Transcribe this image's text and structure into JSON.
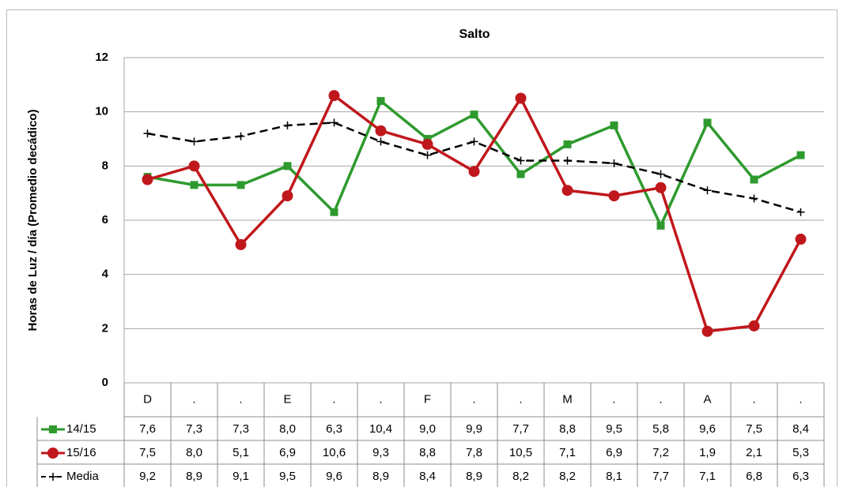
{
  "chart_data": {
    "type": "line",
    "title": "Salto",
    "y_label": "Horas de Luz / día (Promedio decádico)",
    "categories": [
      "D",
      ".",
      ".",
      "E",
      ".",
      ".",
      "F",
      ".",
      ".",
      "M",
      ".",
      ".",
      "A",
      ".",
      "."
    ],
    "series": [
      {
        "name": "14/15",
        "color": "#2e9a2e",
        "marker": "square",
        "values": [
          7.6,
          7.3,
          7.3,
          8.0,
          6.3,
          10.4,
          9.0,
          9.9,
          7.7,
          8.8,
          9.5,
          5.8,
          9.6,
          7.5,
          8.4
        ],
        "value_labels": [
          "7,6",
          "7,3",
          "7,3",
          "8,0",
          "6,3",
          "10,4",
          "9,0",
          "9,9",
          "7,7",
          "8,8",
          "9,5",
          "5,8",
          "9,6",
          "7,5",
          "8,4"
        ]
      },
      {
        "name": "15/16",
        "color": "#c0171c",
        "marker": "circle",
        "values": [
          7.5,
          8.0,
          5.1,
          6.9,
          10.6,
          9.3,
          8.8,
          7.8,
          10.5,
          7.1,
          6.9,
          7.2,
          1.9,
          2.1,
          5.3
        ],
        "value_labels": [
          "7,5",
          "8,0",
          "5,1",
          "6,9",
          "10,6",
          "9,3",
          "8,8",
          "7,8",
          "10,5",
          "7,1",
          "6,9",
          "7,2",
          "1,9",
          "2,1",
          "5,3"
        ]
      },
      {
        "name": "Media",
        "color": "#000000",
        "marker": "plus",
        "dashed": true,
        "values": [
          9.2,
          8.9,
          9.1,
          9.5,
          9.6,
          8.9,
          8.4,
          8.9,
          8.2,
          8.2,
          8.1,
          7.7,
          7.1,
          6.8,
          6.3
        ],
        "value_labels": [
          "9,2",
          "8,9",
          "9,1",
          "9,5",
          "9,6",
          "8,9",
          "8,4",
          "8,9",
          "8,2",
          "8,2",
          "8,1",
          "7,7",
          "7,1",
          "6,8",
          "6,3"
        ]
      }
    ],
    "ylim": [
      0,
      12
    ],
    "yticks": [
      0,
      2,
      4,
      6,
      8,
      10,
      12
    ],
    "grid": true
  }
}
